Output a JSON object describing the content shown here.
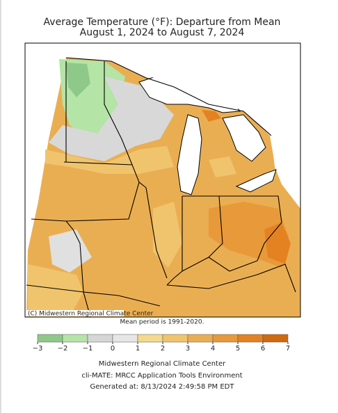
{
  "header": {
    "title_line1": "Average Temperature (°F): Departure from Mean",
    "title_line2": "August 1, 2024 to August 7, 2024"
  },
  "map": {
    "copyright": "(C) Midwestern Regional Climate Center",
    "note": "Mean period is 1991-2020."
  },
  "legend": {
    "ticks": [
      {
        "value": -3,
        "label": "−3"
      },
      {
        "value": -2,
        "label": "−2"
      },
      {
        "value": -1,
        "label": "−1"
      },
      0,
      1,
      2,
      3,
      4,
      5,
      6,
      7
    ],
    "colors": [
      "#8fc98a",
      "#b4e4a6",
      "#d6d6d6",
      "#e6e6e6",
      "#f4d98c",
      "#f0c46c",
      "#eaae52",
      "#e8993a",
      "#e48222",
      "#cf6a0e"
    ]
  },
  "footer": {
    "line1": "Midwestern Regional Climate Center",
    "line2": "cli-MATE: MRCC Application Tools Environment",
    "line3": "Generated at: 8/13/2024 2:49:58 PM EDT"
  }
}
